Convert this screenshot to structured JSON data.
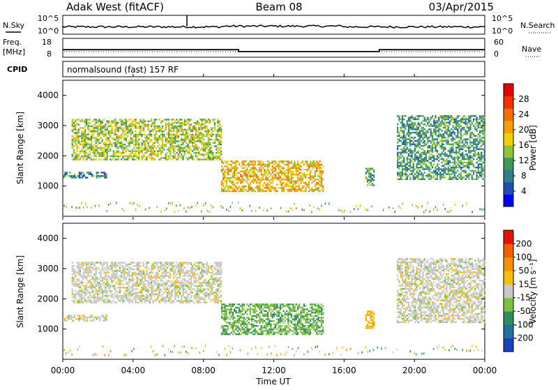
{
  "header": {
    "station": "Adak West (fitACF)",
    "beam": "Beam 08",
    "date": "03/Apr/2015"
  },
  "noise_panel": {
    "left_label": "N.Sky",
    "right_label": "N.Search",
    "left_ticks": [
      "10^5",
      "10^0"
    ],
    "right_ticks": [
      "10^5",
      "10^0"
    ]
  },
  "freq_panel": {
    "left_label_line1": "Freq.",
    "left_label_line2": "[MHz]",
    "right_label": "Nave",
    "left_ticks": [
      "18",
      "8"
    ],
    "right_ticks": [
      "60",
      "0"
    ],
    "freq_steps": [
      [
        0,
        12
      ],
      [
        10.0,
        11
      ],
      [
        18.0,
        12
      ],
      [
        24,
        12
      ]
    ],
    "nave_level": 10
  },
  "cpid": {
    "label": "CPID",
    "text": "normalsound (fast) 157 RF"
  },
  "time_axis": {
    "ticks": [
      "00:00",
      "04:00",
      "08:00",
      "12:00",
      "16:00",
      "20:00",
      "00:00"
    ],
    "label": "Time UT"
  },
  "power_panel": {
    "ylabel": "Slant Range [km]",
    "colorbar_label": "Power [dB]",
    "colorbar_ticks": [
      "28",
      "24",
      "20",
      "16",
      "12",
      "8",
      "4"
    ],
    "colors": [
      "#0000ff",
      "#1f4fb0",
      "#2e7f8c",
      "#3f9a5a",
      "#8cc43c",
      "#f0d000",
      "#f5a000",
      "#f07000",
      "#f03000",
      "#e00000"
    ]
  },
  "velocity_panel": {
    "ylabel": "Slant Range [km]",
    "colorbar_label": "Velocity [m s⁻¹]",
    "colorbar_ticks": [
      "200",
      "100",
      "50",
      "15",
      "-15",
      "-50",
      "-100",
      "-200"
    ],
    "colors": [
      "#1840c0",
      "#2070a0",
      "#2f8e5a",
      "#80c040",
      "#c8c8c8",
      "#f5c000",
      "#f59000",
      "#f06000",
      "#e81000"
    ]
  },
  "chart_data": [
    {
      "type": "line",
      "title": "",
      "xlabel": "",
      "ylabel": "N.Sky",
      "y_scale": "log",
      "ylim": [
        1,
        100000
      ],
      "x": [
        "00:00",
        "04:00",
        "08:00",
        "12:00",
        "16:00",
        "20:00",
        "00:00"
      ]
    },
    {
      "type": "line",
      "xlabel": "",
      "ylabel": "Freq. [MHz]",
      "ylim": [
        8,
        18
      ],
      "series": [
        {
          "name": "Freq.",
          "x_hours": [
            0,
            10.0,
            18.0,
            24
          ],
          "y": [
            12,
            11,
            12,
            12
          ]
        },
        {
          "name": "Nave",
          "x_hours": [
            0,
            24
          ],
          "y": [
            10,
            10
          ]
        }
      ]
    },
    {
      "type": "heatmap",
      "xlabel": "Time UT",
      "ylabel": "Slant Range [km]",
      "ylim": [
        0,
        4500
      ],
      "color_label": "Power [dB]",
      "color_range": [
        0,
        30
      ],
      "x": [
        "00:00",
        "04:00",
        "08:00",
        "12:00",
        "16:00",
        "20:00",
        "00:00"
      ],
      "yticks": [
        1000,
        2000,
        3000,
        4000
      ],
      "regions": [
        {
          "t0": 0.0,
          "t1": 2.5,
          "r0": 1250,
          "r1": 1450,
          "value": 8
        },
        {
          "t0": 0.5,
          "t1": 9.0,
          "r0": 1850,
          "r1": 3200,
          "value": 14
        },
        {
          "t0": 9.0,
          "t1": 14.8,
          "r0": 800,
          "r1": 1800,
          "value": 18
        },
        {
          "t0": 17.2,
          "t1": 17.7,
          "r0": 1000,
          "r1": 1600,
          "value": 10
        },
        {
          "t0": 19.0,
          "t1": 24.0,
          "r0": 1200,
          "r1": 3300,
          "value": 10
        }
      ]
    },
    {
      "type": "heatmap",
      "xlabel": "Time UT",
      "ylabel": "Slant Range [km]",
      "ylim": [
        0,
        4500
      ],
      "color_label": "Velocity [m s⁻¹]",
      "color_range": [
        -200,
        200
      ],
      "x": [
        "00:00",
        "04:00",
        "08:00",
        "12:00",
        "16:00",
        "20:00",
        "00:00"
      ],
      "yticks": [
        1000,
        2000,
        3000,
        4000
      ],
      "regions": [
        {
          "t0": 0.0,
          "t1": 2.5,
          "r0": 1250,
          "r1": 1450,
          "value": 0
        },
        {
          "t0": 0.5,
          "t1": 9.0,
          "r0": 1850,
          "r1": 3200,
          "value": 0
        },
        {
          "t0": 9.0,
          "t1": 14.8,
          "r0": 800,
          "r1": 1800,
          "value": -60
        },
        {
          "t0": 17.2,
          "t1": 17.7,
          "r0": 1000,
          "r1": 1600,
          "value": 50
        },
        {
          "t0": 19.0,
          "t1": 24.0,
          "r0": 1200,
          "r1": 3300,
          "value": 0
        }
      ]
    }
  ]
}
